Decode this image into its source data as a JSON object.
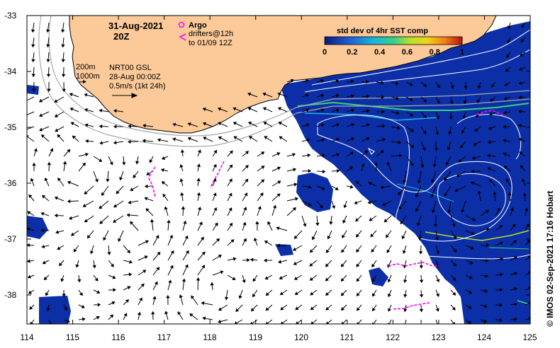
{
  "header": {
    "date": "31-Aug-2021",
    "time": "20Z"
  },
  "legend": {
    "argo_label": "Argo",
    "drifter_line1": "drifters@12h",
    "drifter_line2": "to 01/09 12Z",
    "argo_color": "#ff00ff"
  },
  "map_notes": {
    "contour_200": "200m",
    "contour_1000": "1000m",
    "product": "NRT00 GSL",
    "product_date": "28-Aug 00:00Z",
    "scale_label": "0.5m/s (1kt 24h)"
  },
  "colorbar": {
    "title": "std dev of 4hr SST comp",
    "ticks": [
      "0",
      "0.2",
      "0.4",
      "0.6",
      "0.8",
      "1"
    ]
  },
  "axes": {
    "x_ticks": [
      "114",
      "115",
      "116",
      "117",
      "118",
      "119",
      "120",
      "121",
      "122",
      "123",
      "124",
      "125"
    ],
    "y_ticks": [
      "-33",
      "-34",
      "-35",
      "-36",
      "-37",
      "-38"
    ]
  },
  "credit": "© IMOS 02-Sep-2021 17:16 Hobart",
  "colors": {
    "land": "#fcc999",
    "sst_field": "#0c2fa8",
    "vector": "#000000",
    "drifter": "#ff00ff"
  }
}
